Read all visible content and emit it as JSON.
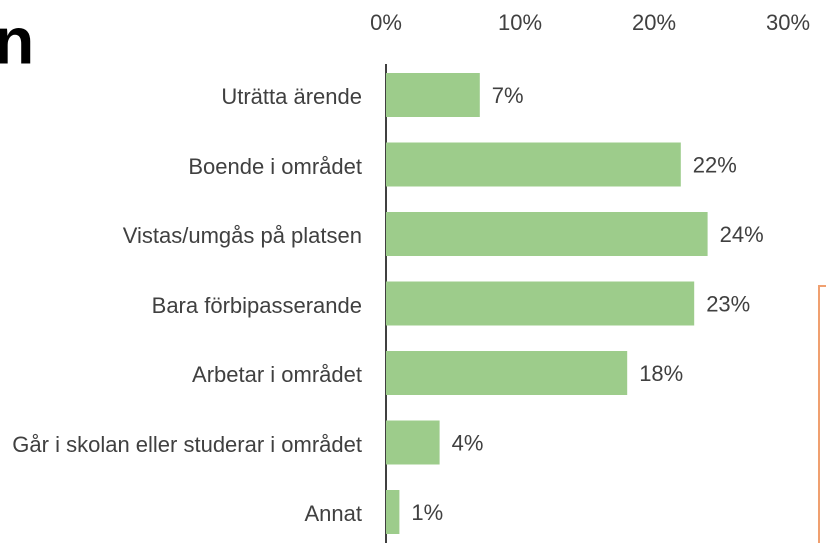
{
  "chart_data": {
    "type": "bar",
    "orientation": "horizontal",
    "title": "n",
    "categories": [
      "Uträtta ärende",
      "Boende i området",
      "Vistas/umgås på platsen",
      "Bara förbipasserande",
      "Arbetar i området",
      "Går i skolan eller studerar i området",
      "Annat"
    ],
    "values": [
      7,
      22,
      24,
      23,
      18,
      4,
      1
    ],
    "value_labels": [
      "7%",
      "22%",
      "24%",
      "23%",
      "18%",
      "4%",
      "1%"
    ],
    "color": "#9dcc8b",
    "xlim": [
      0,
      30
    ],
    "xticks": [
      {
        "value": 0,
        "label": "0%"
      },
      {
        "value": 10,
        "label": "10%"
      },
      {
        "value": 20,
        "label": "20%"
      },
      {
        "value": 30,
        "label": "30%"
      }
    ],
    "grid": false
  }
}
